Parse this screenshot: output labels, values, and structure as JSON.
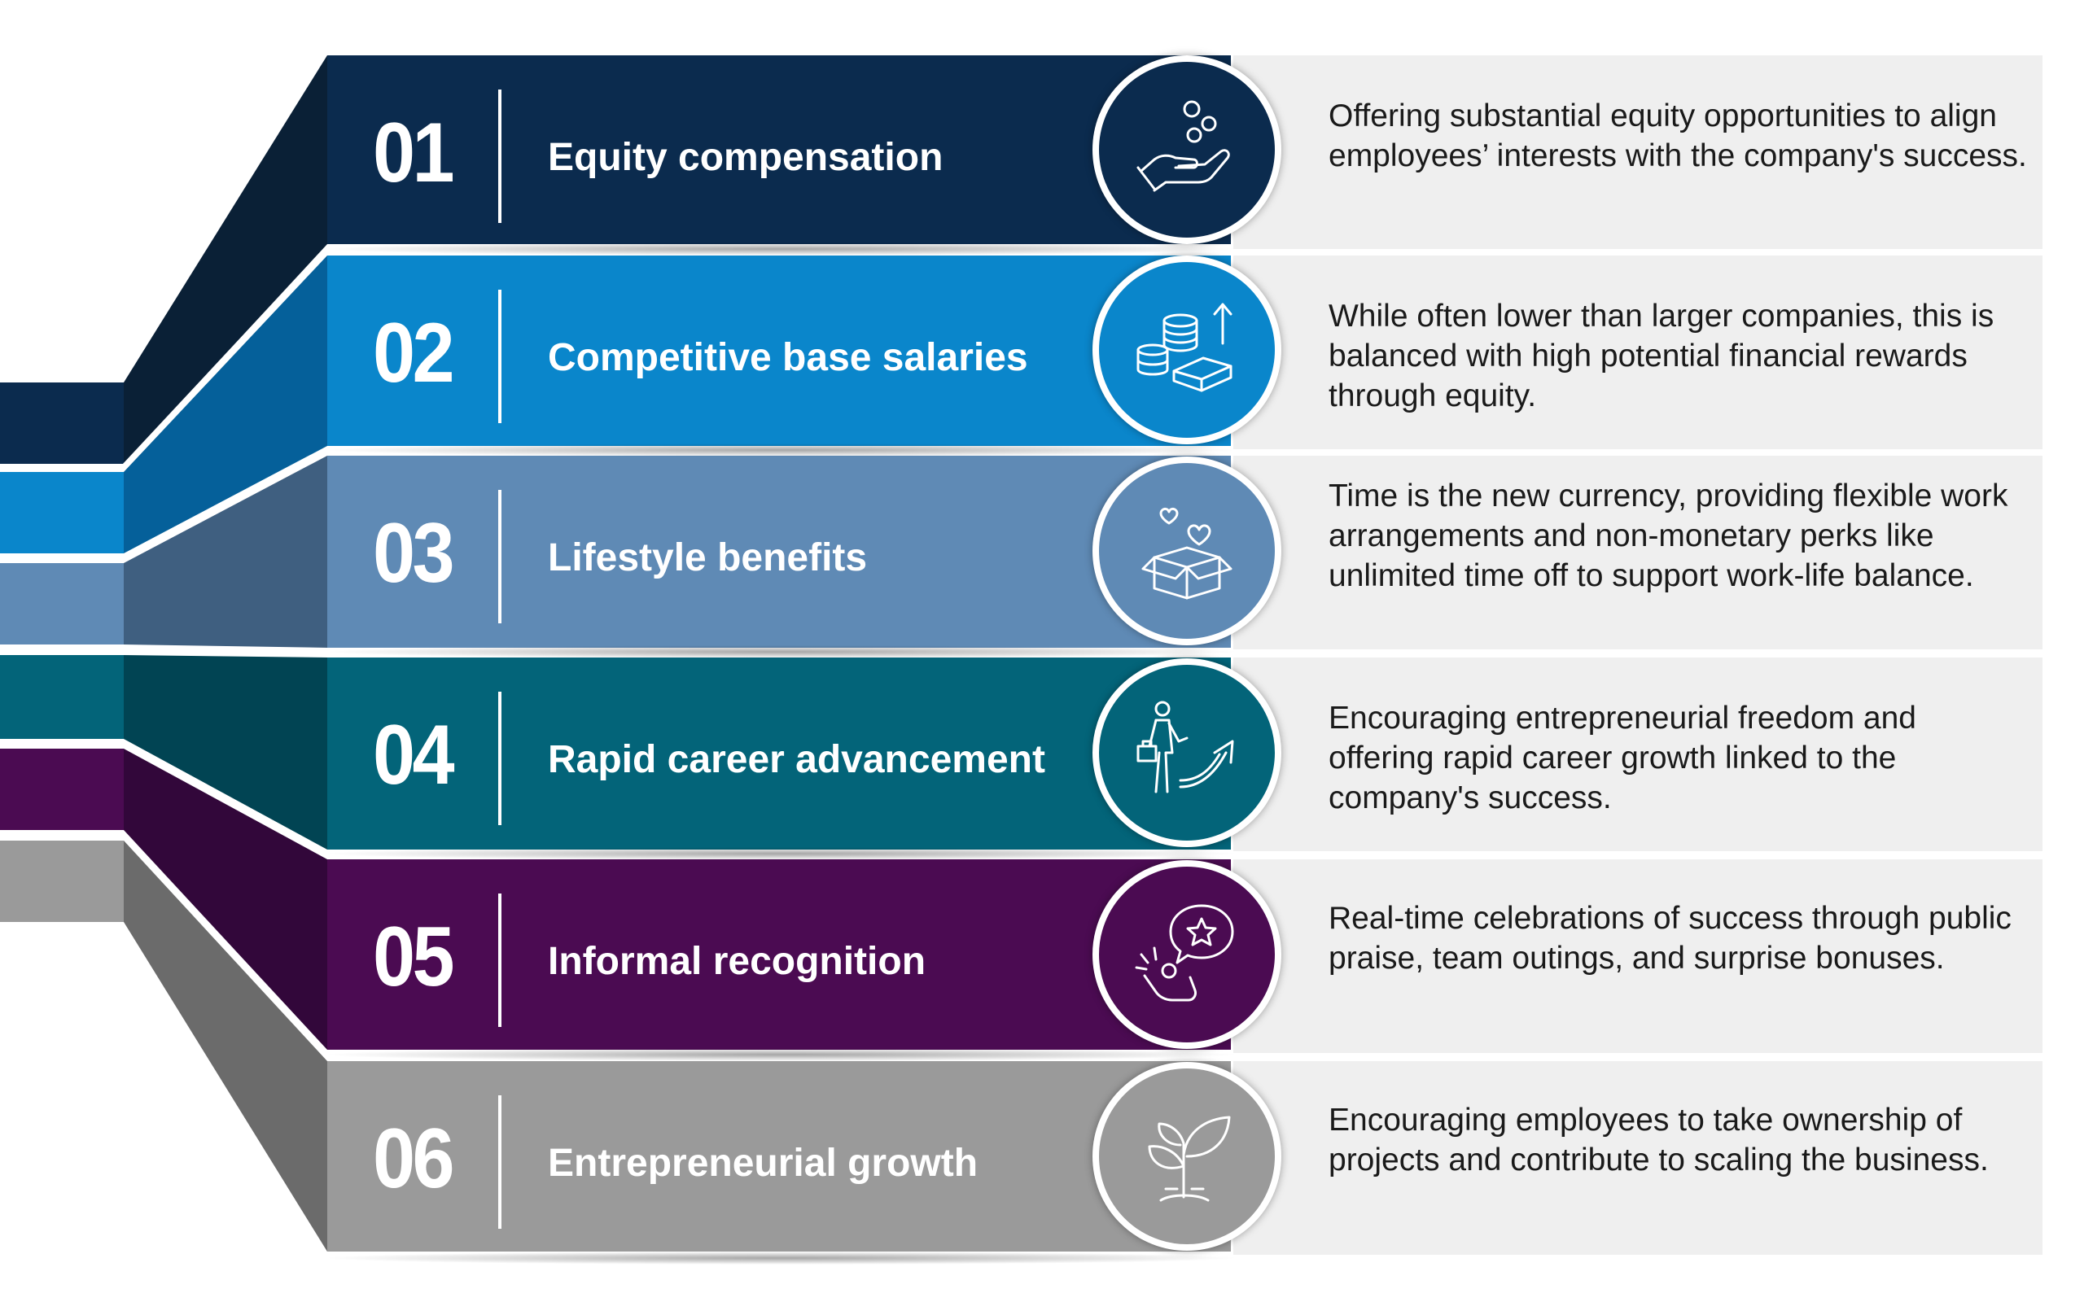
{
  "rows": [
    {
      "number": "01",
      "title": "Equity compensation",
      "description": "Offering substantial equity opportunities to align employees’ interests with the company's success.",
      "icon": "hand-coins-icon",
      "color": "#0b2b4e",
      "side_color": "#0a2036"
    },
    {
      "number": "02",
      "title": "Competitive base salaries",
      "description": "While often lower than larger companies, this is balanced with high potential financial rewards through equity.",
      "icon": "money-stacks-icon",
      "color": "#0a86cb",
      "side_color": "#05609a"
    },
    {
      "number": "03",
      "title": "Lifestyle benefits",
      "description": "Time is the new currency, providing flexible work arrangements and non-monetary perks like unlimited time off to support work-life balance.",
      "icon": "gift-box-hearts-icon",
      "color": "#5f8ab5",
      "side_color": "#3f5f80"
    },
    {
      "number": "04",
      "title": "Rapid career advancement",
      "description": "Encouraging entrepreneurial freedom and offering rapid career growth linked to the company's success.",
      "icon": "career-growth-arrow-icon",
      "color": "#036479",
      "side_color": "#014453"
    },
    {
      "number": "05",
      "title": "Informal recognition",
      "description": "Real-time celebrations of success through public praise, team outings, and surprise bonuses.",
      "icon": "star-recognition-icon",
      "color": "#4b0b52",
      "side_color": "#32073a"
    },
    {
      "number": "06",
      "title": "Entrepreneurial growth",
      "description": "Encouraging employees to take ownership of projects and contribute to scaling the business.",
      "icon": "sprout-plant-icon",
      "color": "#9a9a9a",
      "side_color": "#6b6b6b"
    }
  ]
}
